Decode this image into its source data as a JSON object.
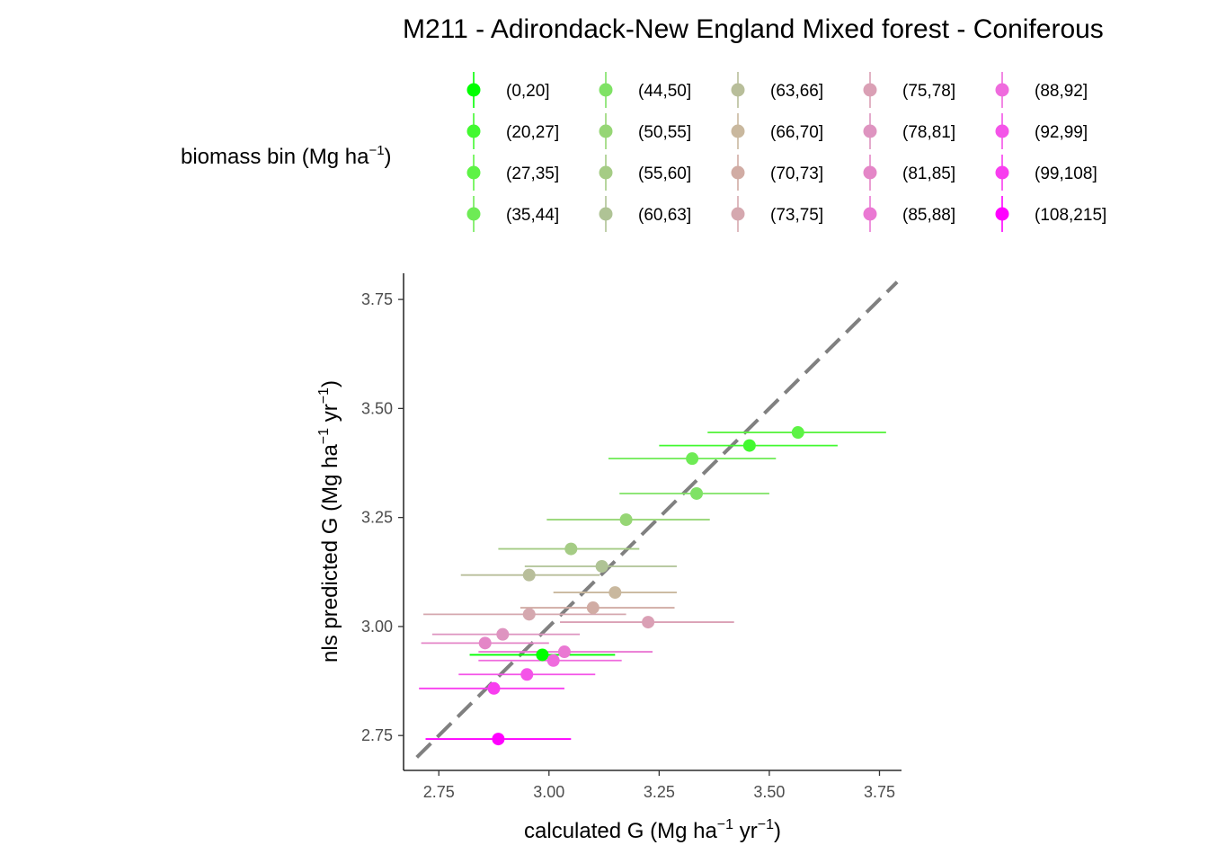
{
  "chart_data": {
    "type": "scatter",
    "title": "M211 - Adirondack-New England Mixed forest - Coniferous",
    "xlabel": {
      "base": "calculated G (Mg ha",
      "sup1": "−1",
      "mid": " yr",
      "sup2": "−1",
      "end": ")"
    },
    "ylabel": {
      "base": "nls predicted G (Mg ha",
      "sup1": "−1",
      "mid": " yr",
      "sup2": "−1",
      "end": ")"
    },
    "xlim": [
      2.67,
      3.8
    ],
    "ylim": [
      2.67,
      3.81
    ],
    "xticks": [
      2.75,
      3.0,
      3.25,
      3.5,
      3.75
    ],
    "xtick_labels": [
      "2.75",
      "3.00",
      "3.25",
      "3.50",
      "3.75"
    ],
    "yticks": [
      2.75,
      3.0,
      3.25,
      3.5,
      3.75
    ],
    "ytick_labels": [
      "2.75",
      "3.00",
      "3.25",
      "3.50",
      "3.75"
    ],
    "reference_line": {
      "type": "identity",
      "style": "dashed",
      "color": "#808080"
    },
    "legend": {
      "title": {
        "base": "biomass bin (Mg ha",
        "sup": "−1",
        "end": ")"
      },
      "position": "top"
    },
    "series": [
      {
        "name": "(0,20]",
        "color": "#00FF00",
        "x": 2.985,
        "y": 2.935,
        "xmin": 2.82,
        "xmax": 3.15
      },
      {
        "name": "(20,27]",
        "color": "#42F930",
        "x": 3.455,
        "y": 3.415,
        "xmin": 3.25,
        "xmax": 3.655
      },
      {
        "name": "(27,35]",
        "color": "#5DF345",
        "x": 3.565,
        "y": 3.445,
        "xmin": 3.36,
        "xmax": 3.765
      },
      {
        "name": "(35,44]",
        "color": "#6EEB55",
        "x": 3.325,
        "y": 3.385,
        "xmin": 3.135,
        "xmax": 3.515
      },
      {
        "name": "(44,50]",
        "color": "#7FE265",
        "x": 3.335,
        "y": 3.305,
        "xmin": 3.16,
        "xmax": 3.5
      },
      {
        "name": "(50,55]",
        "color": "#96D675",
        "x": 3.175,
        "y": 3.245,
        "xmin": 2.995,
        "xmax": 3.365
      },
      {
        "name": "(55,60]",
        "color": "#A5CC85",
        "x": 3.05,
        "y": 3.178,
        "xmin": 2.885,
        "xmax": 3.205
      },
      {
        "name": "(60,63]",
        "color": "#AFC395",
        "x": 3.12,
        "y": 3.138,
        "xmin": 2.945,
        "xmax": 3.29
      },
      {
        "name": "(63,66]",
        "color": "#B8BE9A",
        "x": 2.955,
        "y": 3.118,
        "xmin": 2.8,
        "xmax": 3.115
      },
      {
        "name": "(66,70]",
        "color": "#C9B89E",
        "x": 3.15,
        "y": 3.078,
        "xmin": 3.01,
        "xmax": 3.29
      },
      {
        "name": "(70,73]",
        "color": "#D1ACA4",
        "x": 3.1,
        "y": 3.043,
        "xmin": 2.935,
        "xmax": 3.285
      },
      {
        "name": "(73,75]",
        "color": "#D5A8AF",
        "x": 2.955,
        "y": 3.028,
        "xmin": 2.715,
        "xmax": 3.175
      },
      {
        "name": "(75,78]",
        "color": "#DAA0B5",
        "x": 3.225,
        "y": 3.01,
        "xmin": 3.025,
        "xmax": 3.42
      },
      {
        "name": "(78,81]",
        "color": "#DE94C0",
        "x": 2.895,
        "y": 2.982,
        "xmin": 2.735,
        "xmax": 3.07
      },
      {
        "name": "(81,85]",
        "color": "#E486C7",
        "x": 2.855,
        "y": 2.962,
        "xmin": 2.71,
        "xmax": 3.0
      },
      {
        "name": "(85,88]",
        "color": "#EA78D3",
        "x": 3.035,
        "y": 2.942,
        "xmin": 2.84,
        "xmax": 3.235
      },
      {
        "name": "(88,92]",
        "color": "#EF6BDD",
        "x": 3.01,
        "y": 2.922,
        "xmin": 2.84,
        "xmax": 3.165
      },
      {
        "name": "(92,99]",
        "color": "#F454E8",
        "x": 2.95,
        "y": 2.89,
        "xmin": 2.795,
        "xmax": 3.105
      },
      {
        "name": "(99,108]",
        "color": "#F83EEF",
        "x": 2.875,
        "y": 2.858,
        "xmin": 2.705,
        "xmax": 3.035
      },
      {
        "name": "(108,215]",
        "color": "#FF00FF",
        "x": 2.885,
        "y": 2.742,
        "xmin": 2.72,
        "xmax": 3.05
      }
    ]
  }
}
